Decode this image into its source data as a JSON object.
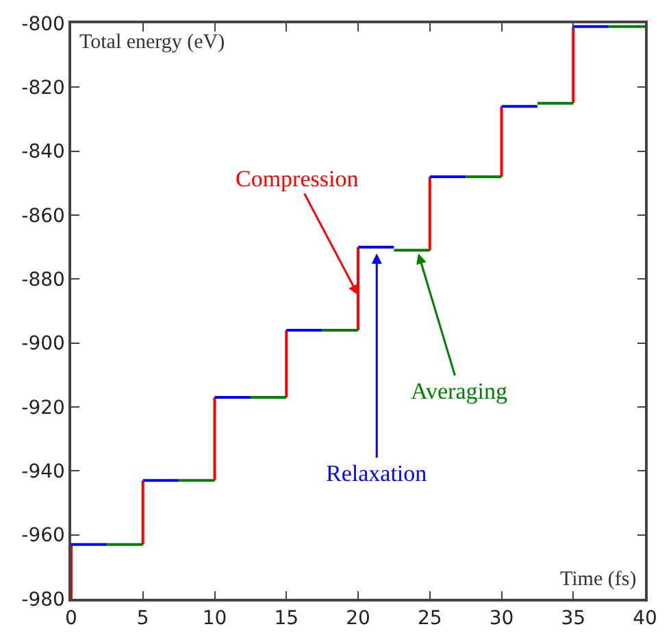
{
  "chart_data": {
    "type": "line",
    "xlabel": "Time (fs)",
    "ylabel": "Total energy (eV)",
    "xlim": [
      0,
      40
    ],
    "xticks": [
      0,
      5,
      10,
      15,
      20,
      25,
      30,
      35,
      40
    ],
    "ylim": [
      -980,
      -800
    ],
    "yticks": [
      -980,
      -960,
      -940,
      -920,
      -900,
      -880,
      -860,
      -840,
      -820,
      -800
    ],
    "marker": "none",
    "line_style": "solid",
    "series": [
      {
        "color": "#ff0000",
        "x": [
          0,
          0,
          null,
          5,
          5,
          null,
          10,
          10,
          null,
          15,
          15,
          null,
          20,
          20,
          null,
          25,
          25,
          null,
          30,
          30,
          null,
          35,
          35
        ],
        "values": [
          -980,
          -963,
          null,
          -963,
          -943,
          null,
          -943,
          -917,
          null,
          -917,
          -896,
          null,
          -896,
          -870,
          null,
          -871,
          -848,
          null,
          -848,
          -826,
          null,
          -825,
          -801
        ]
      },
      {
        "color": "#0000ff",
        "x": [
          0,
          2.5,
          null,
          5,
          7.5,
          null,
          10,
          12.5,
          null,
          15,
          17.5,
          null,
          20,
          22.5,
          null,
          25,
          27.5,
          null,
          30,
          32.5,
          null,
          35,
          37.5
        ],
        "values": [
          -963,
          -963,
          null,
          -943,
          -943,
          null,
          -917,
          -917,
          null,
          -896,
          -896,
          null,
          -870,
          -870,
          null,
          -848,
          -848,
          null,
          -826,
          -826,
          null,
          -801,
          -801
        ]
      },
      {
        "color": "#008000",
        "x": [
          2.5,
          5,
          null,
          7.5,
          10,
          null,
          12.5,
          15,
          null,
          17.5,
          20,
          null,
          22.5,
          25,
          null,
          27.5,
          30,
          null,
          32.5,
          35,
          null,
          37.5,
          40
        ],
        "values": [
          -963,
          -963,
          null,
          -943,
          -943,
          null,
          -917,
          -917,
          null,
          -896,
          -896,
          null,
          -871,
          -871,
          null,
          -848,
          -848,
          null,
          -825,
          -825,
          null,
          -801,
          -801
        ]
      }
    ],
    "annotations": [
      {
        "text": "Compression",
        "x": 20,
        "y": -885
      },
      {
        "text": "Relaxation",
        "x": 21.3,
        "y": -872
      },
      {
        "text": "Averaging",
        "x": 24.2,
        "y": -872
      }
    ]
  }
}
